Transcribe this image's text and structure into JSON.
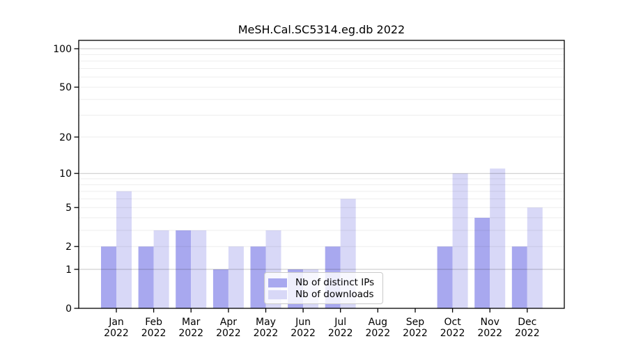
{
  "figure": {
    "background": "#ffffff",
    "axis_color": "#000000"
  },
  "chart_data": {
    "type": "bar",
    "title": "MeSH.Cal.SC5314.eg.db 2022",
    "categories": [
      "Jan",
      "Feb",
      "Mar",
      "Apr",
      "May",
      "Jun",
      "Jul",
      "Aug",
      "Sep",
      "Oct",
      "Nov",
      "Dec"
    ],
    "x_tick_label_line2": "2022",
    "series": [
      {
        "name": "Nb of distinct IPs",
        "color": "#a8a8ef",
        "values": [
          2,
          2,
          3,
          1,
          2,
          1,
          2,
          0,
          0,
          2,
          4,
          2
        ]
      },
      {
        "name": "Nb of downloads",
        "color": "#d8d8f7",
        "values": [
          7,
          3,
          3,
          2,
          3,
          1,
          6,
          0,
          0,
          10,
          11,
          5
        ]
      }
    ],
    "y_axis": {
      "scale": "log1p",
      "tick_values": [
        0,
        1,
        2,
        5,
        10,
        20,
        50,
        100
      ],
      "minor_gridlines": [
        2,
        3,
        4,
        5,
        6,
        7,
        8,
        9,
        20,
        30,
        40,
        50,
        60,
        70,
        80,
        90
      ],
      "major_gridlines": [
        1,
        10,
        100
      ],
      "range": [
        0,
        113
      ]
    },
    "xlabel": "",
    "ylabel": "",
    "grid": true,
    "legend": {
      "position": "bottom-center",
      "entries": [
        {
          "label": "Nb of distinct IPs",
          "color": "#a8a8ef"
        },
        {
          "label": "Nb of downloads",
          "color": "#d8d8f7"
        }
      ]
    }
  }
}
